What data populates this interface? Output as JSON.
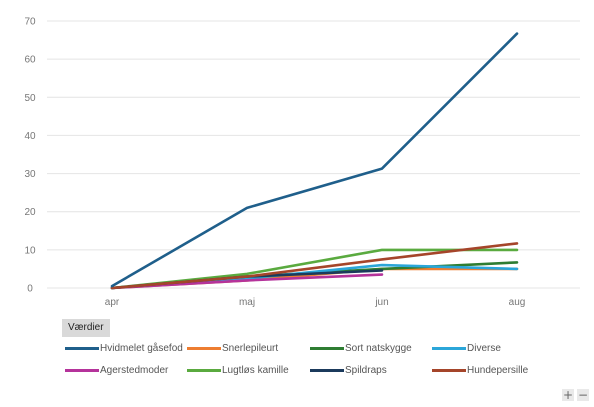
{
  "chart_data": {
    "type": "line",
    "categories": [
      "apr",
      "maj",
      "jun",
      "aug"
    ],
    "ylim": [
      0,
      70
    ],
    "yticks": [
      0,
      10,
      20,
      30,
      40,
      50,
      60,
      70
    ],
    "grid": true,
    "legend_title": "Værdier",
    "legend_position": "bottom",
    "series": [
      {
        "name": "Hvidmelet gåsefod",
        "color": "#1f5f8b",
        "values": [
          0.5,
          21,
          31.3,
          66.7
        ]
      },
      {
        "name": "Snerlepileurt",
        "color": "#ed7d31",
        "values": [
          0,
          2,
          5,
          5
        ]
      },
      {
        "name": "Sort natskygge",
        "color": "#2e7d32",
        "values": [
          0,
          3,
          5,
          6.7
        ]
      },
      {
        "name": "Diverse",
        "color": "#2ba6d9",
        "values": [
          0,
          2.5,
          6,
          5
        ]
      },
      {
        "name": "Agerstedmoder",
        "color": "#b5339b",
        "values": [
          0,
          2,
          3.5,
          null
        ]
      },
      {
        "name": "Lugtløs kamille",
        "color": "#5aaa3f",
        "values": [
          0,
          3.7,
          10,
          10
        ]
      },
      {
        "name": "Spildraps",
        "color": "#1b3a5c",
        "values": [
          0,
          3,
          4.6,
          null
        ]
      },
      {
        "name": "Hundepersille",
        "color": "#a5452a",
        "values": [
          0,
          3,
          7.5,
          11.7
        ]
      }
    ]
  },
  "controls": {
    "zoom_in": "+",
    "zoom_out": "−"
  }
}
